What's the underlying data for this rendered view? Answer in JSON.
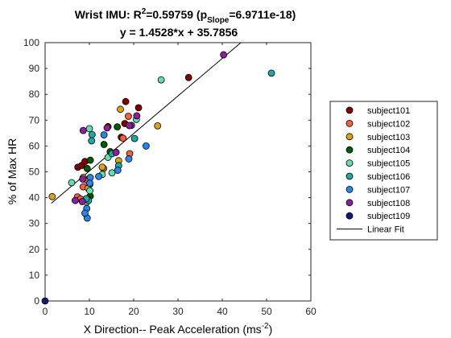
{
  "chart_data": {
    "type": "scatter",
    "title_line1": {
      "prefix": "Wrist IMU: R",
      "r2_sup": "2",
      "r2_val": "=0.59759 (p",
      "p_sub": "Slope",
      "p_val": "=6.9711e-18)"
    },
    "title_line2": "y = 1.4528*x + 35.7856",
    "xlabel": {
      "main": "X Direction-- Peak Acceleration (ms",
      "sup": "-2",
      "end": ")"
    },
    "ylabel": "% of Max HR",
    "xlim": [
      0,
      60
    ],
    "ylim": [
      0,
      100
    ],
    "xticks": [
      "0",
      "10",
      "20",
      "30",
      "40",
      "50",
      "60"
    ],
    "yticks": [
      "0",
      "10",
      "20",
      "30",
      "40",
      "50",
      "60",
      "70",
      "80",
      "90",
      "100"
    ],
    "fit": {
      "name": "Linear Fit",
      "slope": 1.4528,
      "intercept": 35.7856,
      "x_range": [
        1.4,
        44.2
      ],
      "color": "#000000"
    },
    "series": [
      {
        "name": "subject101",
        "color": "#800000",
        "points": [
          [
            32.4,
            86.5
          ],
          [
            18.2,
            77.2
          ],
          [
            21.1,
            74.8
          ],
          [
            18.0,
            68.7
          ],
          [
            14.2,
            67.5
          ],
          [
            17.2,
            63.4
          ],
          [
            7.4,
            51.8
          ],
          [
            8.3,
            52.5
          ],
          [
            9.0,
            54.0
          ]
        ]
      },
      {
        "name": "subject102",
        "color": "#f4613e",
        "points": [
          [
            18.8,
            71.5
          ],
          [
            17.6,
            63.0
          ],
          [
            19.1,
            57.0
          ],
          [
            13.2,
            51.3
          ],
          [
            7.3,
            40.3
          ],
          [
            8.6,
            44.2
          ],
          [
            9.4,
            46.8
          ],
          [
            8.0,
            39.5
          ],
          [
            10.1,
            45.2
          ]
        ]
      },
      {
        "name": "subject103",
        "color": "#d9a21b",
        "points": [
          [
            25.4,
            67.8
          ],
          [
            17.0,
            74.2
          ],
          [
            12.9,
            51.8
          ],
          [
            16.6,
            54.3
          ],
          [
            1.6,
            40.4
          ],
          [
            8.6,
            47.8
          ],
          [
            9.7,
            43.6
          ]
        ]
      },
      {
        "name": "subject104",
        "color": "#005c00",
        "points": [
          [
            16.3,
            67.4
          ],
          [
            13.3,
            60.6
          ],
          [
            10.2,
            54.5
          ],
          [
            14.7,
            57.8
          ],
          [
            9.5,
            51.3
          ],
          [
            10.2,
            40.6
          ],
          [
            9.6,
            39.6
          ]
        ]
      },
      {
        "name": "subject105",
        "color": "#66dcb0",
        "points": [
          [
            26.2,
            85.6
          ],
          [
            20.6,
            70.3
          ],
          [
            16.0,
            57.6
          ],
          [
            15.1,
            49.6
          ],
          [
            14.2,
            55.6
          ],
          [
            12.9,
            49.0
          ],
          [
            10.0,
            66.7
          ],
          [
            6.0,
            45.8
          ],
          [
            10.1,
            42.7
          ],
          [
            9.4,
            38.3
          ]
        ]
      },
      {
        "name": "subject106",
        "color": "#1da9a5",
        "points": [
          [
            51.1,
            88.2
          ],
          [
            20.2,
            62.9
          ],
          [
            16.6,
            52.4
          ],
          [
            15.1,
            57.0
          ],
          [
            10.5,
            62.0
          ],
          [
            10.6,
            64.4
          ],
          [
            9.8,
            38.9
          ],
          [
            9.3,
            39.6
          ]
        ]
      },
      {
        "name": "subject107",
        "color": "#2885ea",
        "points": [
          [
            22.8,
            60.0
          ],
          [
            18.9,
            55.0
          ],
          [
            16.4,
            50.6
          ],
          [
            13.3,
            64.3
          ],
          [
            12.1,
            48.2
          ],
          [
            10.2,
            47.8
          ],
          [
            9.4,
            35.8
          ],
          [
            9.5,
            32.1
          ],
          [
            9.0,
            34.0
          ],
          [
            10.1,
            45.6
          ]
        ]
      },
      {
        "name": "subject108",
        "color": "#8c1f9c",
        "points": [
          [
            40.3,
            95.3
          ],
          [
            20.7,
            71.7
          ],
          [
            19.5,
            68.0
          ],
          [
            19.0,
            67.9
          ],
          [
            14.0,
            67.0
          ],
          [
            8.6,
            66.0
          ],
          [
            16.0,
            57.5
          ],
          [
            8.5,
            47.2
          ],
          [
            6.8,
            38.9
          ],
          [
            8.4,
            38.5
          ]
        ]
      },
      {
        "name": "subject109",
        "color": "#0b1a7a",
        "points": [
          [
            0.0,
            0.0
          ]
        ]
      }
    ]
  }
}
